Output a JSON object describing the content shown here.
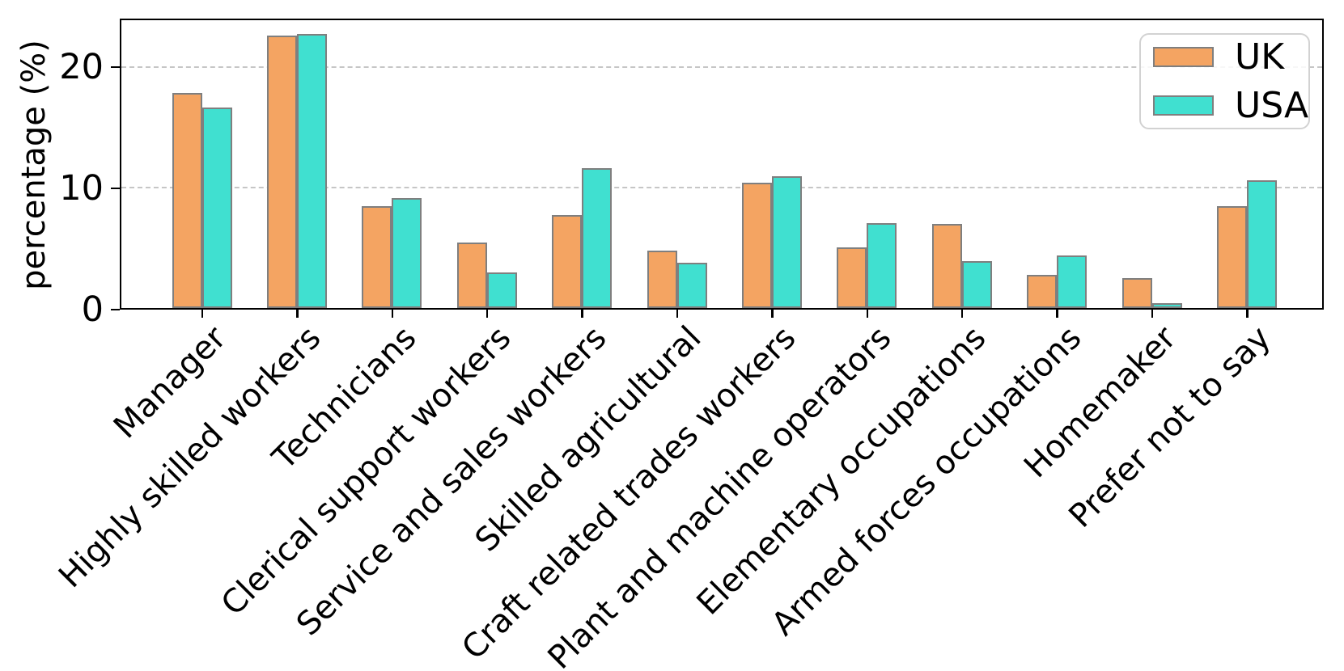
{
  "chart_data": {
    "type": "bar",
    "title": "",
    "xlabel": "",
    "ylabel": "percentage (%)",
    "ylim": [
      0,
      24
    ],
    "yticks": [
      0,
      10,
      20
    ],
    "grid": {
      "axis": "y",
      "style": "dashed",
      "color": "#c6c6c6",
      "at": [
        10,
        20
      ]
    },
    "legend": {
      "position": "upper right"
    },
    "bar_edge_color": "#7f7f7f",
    "categories": [
      "Manager",
      "Highly skilled workers",
      "Technicians",
      "Clerical support workers",
      "Service and sales workers",
      "Skilled agricultural",
      "Craft related trades workers",
      "Plant and machine operators",
      "Elementary occupations",
      "Armed forces occupations",
      "Homemaker",
      "Prefer not to say"
    ],
    "series": [
      {
        "name": "UK",
        "color": "#f4a462",
        "values": [
          18.0,
          22.8,
          8.5,
          5.5,
          7.8,
          4.8,
          10.5,
          5.1,
          7.0,
          2.8,
          2.5,
          8.5
        ]
      },
      {
        "name": "USA",
        "color": "#40e0d0",
        "values": [
          16.8,
          22.9,
          9.2,
          3.0,
          11.7,
          3.8,
          11.0,
          7.1,
          3.9,
          4.4,
          0.4,
          10.7
        ]
      }
    ]
  }
}
